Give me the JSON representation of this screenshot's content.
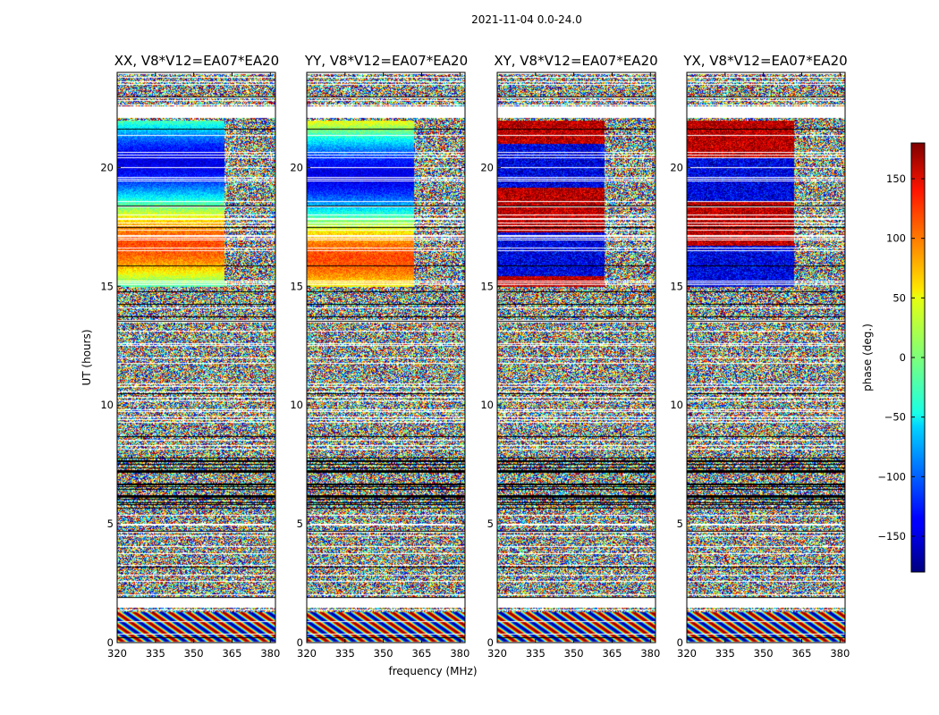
{
  "chart_data": {
    "type": "heatmap",
    "suptitle": "2021-11-04 0.0-24.0",
    "xlabel": "frequency (MHz)",
    "ylabel": "UT (hours)",
    "xlim": [
      320,
      382
    ],
    "ylim": [
      0,
      24
    ],
    "x_ticks": [
      "320",
      "335",
      "350",
      "365",
      "380"
    ],
    "y_ticks": [
      "0",
      "5",
      "10",
      "15",
      "20"
    ],
    "panels": [
      {
        "title": "XX, V8*V12=EA07*EA20",
        "pol": "XX",
        "coherent_lo": 15.0,
        "coherent_hi": 22.0,
        "high_freq_edge": 362
      },
      {
        "title": "YY, V8*V12=EA07*EA20",
        "pol": "YY",
        "coherent_lo": 15.0,
        "coherent_hi": 22.0,
        "high_freq_edge": 362
      },
      {
        "title": "XY, V8*V12=EA07*EA20",
        "pol": "XY",
        "coherent_lo": 15.0,
        "coherent_hi": 22.0,
        "high_freq_edge": 362
      },
      {
        "title": "YX, V8*V12=EA07*EA20",
        "pol": "YX",
        "coherent_lo": 15.0,
        "coherent_hi": 22.0,
        "high_freq_edge": 362
      }
    ],
    "colorbar": {
      "label": "phase (deg.)",
      "range": [
        -180,
        180
      ],
      "ticks": [
        "150",
        "100",
        "50",
        "0",
        "−50",
        "−100",
        "−150"
      ],
      "tick_values": [
        150,
        100,
        50,
        0,
        -50,
        -100,
        -150
      ],
      "colormap": "jet"
    }
  }
}
